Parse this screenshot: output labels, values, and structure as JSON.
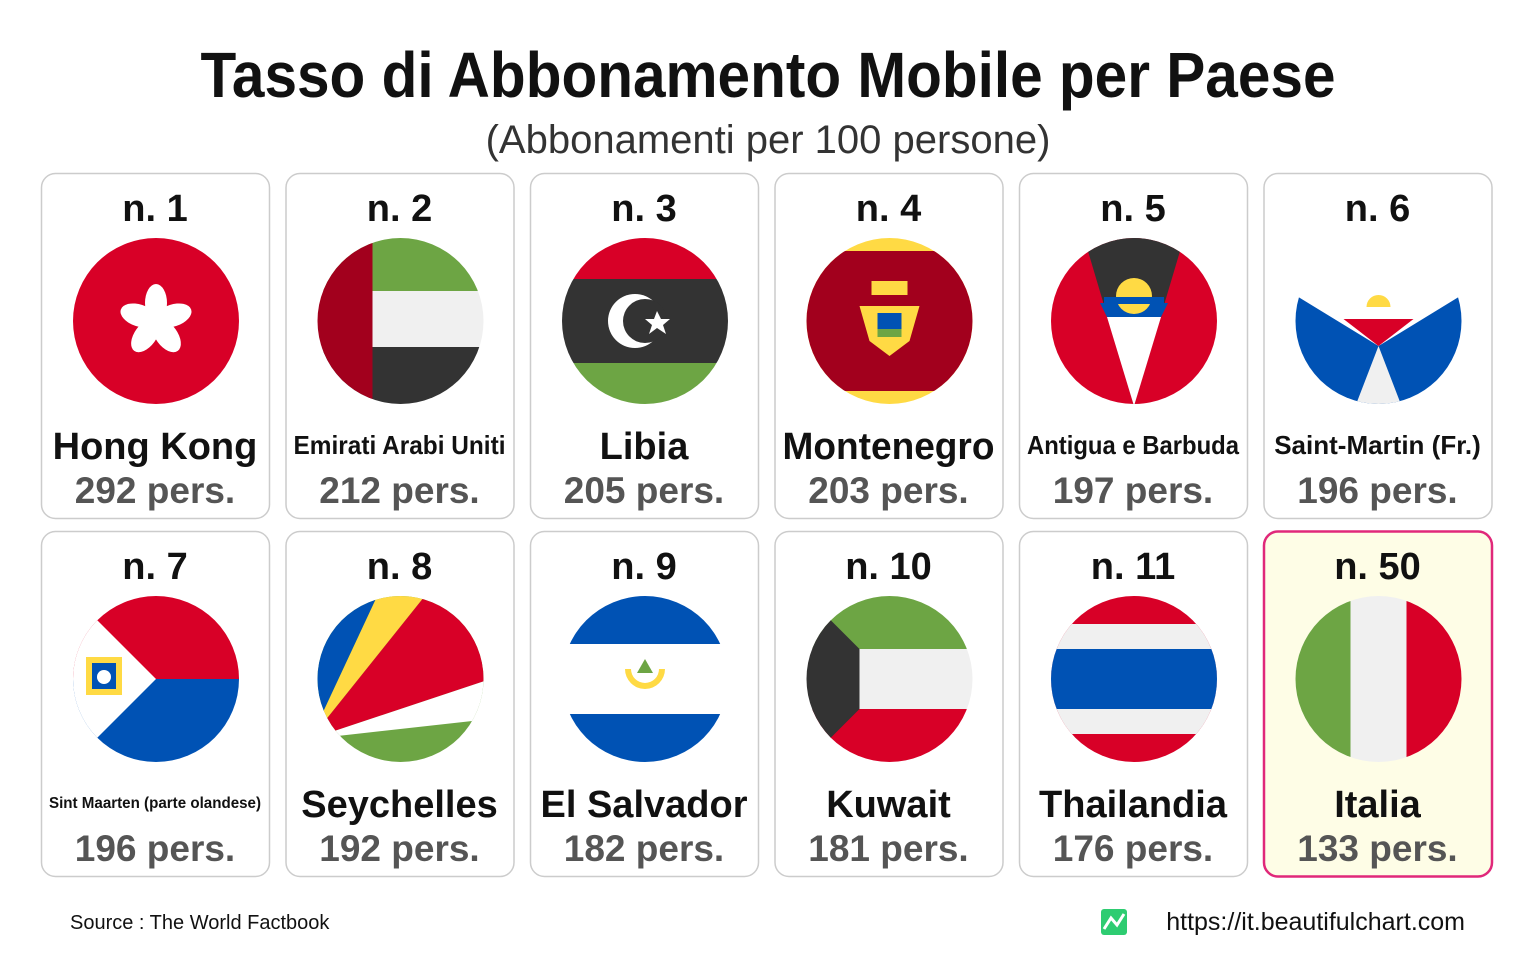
{
  "header": {
    "title": "Tasso di Abbonamento Mobile per Paese",
    "subtitle": "(Abbonamenti per 100 persone)"
  },
  "cards": [
    {
      "rank": "n. 1",
      "name": "Hong Kong",
      "value": "292 pers."
    },
    {
      "rank": "n. 2",
      "name": "Emirati Arabi Uniti",
      "value": "212 pers."
    },
    {
      "rank": "n. 3",
      "name": "Libia",
      "value": "205 pers."
    },
    {
      "rank": "n. 4",
      "name": "Montenegro",
      "value": "203 pers."
    },
    {
      "rank": "n. 5",
      "name": "Antigua e Barbuda",
      "value": "197 pers."
    },
    {
      "rank": "n. 6",
      "name": "Saint-Martin (Fr.)",
      "value": "196 pers."
    },
    {
      "rank": "n. 7",
      "name": "Sint Maarten (parte olandese)",
      "value": "196 pers."
    },
    {
      "rank": "n. 8",
      "name": "Seychelles",
      "value": "192 pers."
    },
    {
      "rank": "n. 9",
      "name": "El Salvador",
      "value": "182 pers."
    },
    {
      "rank": "n. 10",
      "name": "Kuwait",
      "value": "181 pers."
    },
    {
      "rank": "n. 11",
      "name": "Thailandia",
      "value": "176 pers."
    },
    {
      "rank": "n. 50",
      "name": "Italia",
      "value": "133 pers.",
      "highlight": true
    }
  ],
  "footer": {
    "source": "Source : The World Factbook",
    "url": "https://it.beautifulchart.com"
  }
}
